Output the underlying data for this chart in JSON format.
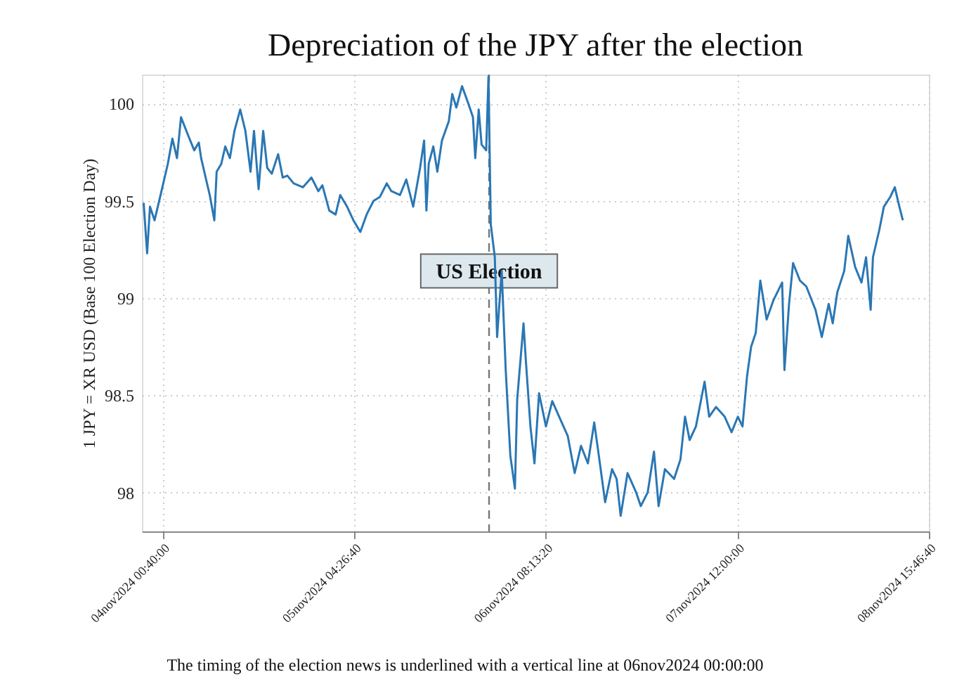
{
  "chart_data": {
    "type": "line",
    "title": "Depreciation of the JPY after the election",
    "ylabel": "1 JPY = XR USD (Base 100 Election Day)",
    "annotations": [
      "The timing of the election news is underlined with a vertical line at 06nov2024 00:00:00"
    ],
    "x": [
      "2024-11-03T21:55",
      "2024-11-03T22:25",
      "2024-11-03T22:50",
      "2024-11-03T23:30",
      "2024-11-04T00:30",
      "2024-11-04T01:25",
      "2024-11-04T02:05",
      "2024-11-04T02:45",
      "2024-11-04T03:20",
      "2024-11-04T04:20",
      "2024-11-04T05:15",
      "2024-11-04T05:55",
      "2024-11-04T06:15",
      "2024-11-04T07:10",
      "2024-11-04T07:30",
      "2024-11-04T08:10",
      "2024-11-04T08:30",
      "2024-11-04T09:10",
      "2024-11-04T09:45",
      "2024-11-04T10:25",
      "2024-11-04T11:05",
      "2024-11-04T11:55",
      "2024-11-04T12:40",
      "2024-11-04T13:25",
      "2024-11-04T13:55",
      "2024-11-04T14:35",
      "2024-11-04T15:15",
      "2024-11-04T15:50",
      "2024-11-04T16:30",
      "2024-11-04T17:25",
      "2024-11-04T18:05",
      "2024-11-04T18:45",
      "2024-11-04T19:40",
      "2024-11-04T21:00",
      "2024-11-04T22:15",
      "2024-11-04T23:15",
      "2024-11-04T23:50",
      "2024-11-05T00:50",
      "2024-11-05T01:45",
      "2024-11-05T02:25",
      "2024-11-05T03:25",
      "2024-11-05T04:20",
      "2024-11-05T05:20",
      "2024-11-05T06:15",
      "2024-11-05T07:15",
      "2024-11-05T08:10",
      "2024-11-05T09:10",
      "2024-11-05T09:50",
      "2024-11-05T11:05",
      "2024-11-05T12:00",
      "2024-11-05T13:00",
      "2024-11-05T14:00",
      "2024-11-05T14:35",
      "2024-11-05T14:55",
      "2024-11-05T15:15",
      "2024-11-05T15:55",
      "2024-11-05T16:30",
      "2024-11-05T17:10",
      "2024-11-05T18:10",
      "2024-11-05T18:40",
      "2024-11-05T19:15",
      "2024-11-05T20:05",
      "2024-11-05T21:00",
      "2024-11-05T21:40",
      "2024-11-05T22:00",
      "2024-11-05T22:30",
      "2024-11-05T22:55",
      "2024-11-05T23:35",
      "2024-11-05T23:55",
      "2024-11-06T00:05",
      "2024-11-06T00:15",
      "2024-11-06T00:50",
      "2024-11-06T01:10",
      "2024-11-06T01:50",
      "2024-11-06T02:25",
      "2024-11-06T03:05",
      "2024-11-06T03:45",
      "2024-11-06T04:05",
      "2024-11-06T05:00",
      "2024-11-06T05:20",
      "2024-11-06T06:00",
      "2024-11-06T06:35",
      "2024-11-06T07:15",
      "2024-11-06T08:15",
      "2024-11-06T09:10",
      "2024-11-06T10:10",
      "2024-11-06T11:25",
      "2024-11-06T12:25",
      "2024-11-06T13:20",
      "2024-11-06T14:20",
      "2024-11-06T15:15",
      "2024-11-06T15:55",
      "2024-11-06T16:50",
      "2024-11-06T17:50",
      "2024-11-06T18:30",
      "2024-11-06T19:05",
      "2024-11-06T20:05",
      "2024-11-06T21:20",
      "2024-11-06T22:00",
      "2024-11-06T23:00",
      "2024-11-06T23:55",
      "2024-11-07T00:35",
      "2024-11-07T01:30",
      "2024-11-07T02:50",
      "2024-11-07T03:45",
      "2024-11-07T04:25",
      "2024-11-07T05:05",
      "2024-11-07T06:00",
      "2024-11-07T07:15",
      "2024-11-07T07:55",
      "2024-11-07T08:55",
      "2024-11-07T10:10",
      "2024-11-07T11:10",
      "2024-11-07T12:05",
      "2024-11-07T12:45",
      "2024-11-07T13:25",
      "2024-11-07T14:00",
      "2024-11-07T14:40",
      "2024-11-07T15:20",
      "2024-11-07T16:15",
      "2024-11-07T17:15",
      "2024-11-07T18:30",
      "2024-11-07T18:50",
      "2024-11-07T19:30",
      "2024-11-07T20:05",
      "2024-11-07T21:05",
      "2024-11-07T22:00",
      "2024-11-07T23:20",
      "2024-11-08T00:15",
      "2024-11-08T01:15",
      "2024-11-08T01:50",
      "2024-11-08T02:30",
      "2024-11-08T03:30",
      "2024-11-08T04:05",
      "2024-11-08T05:05",
      "2024-11-08T06:00",
      "2024-11-08T06:40",
      "2024-11-08T07:20",
      "2024-11-08T07:40",
      "2024-11-08T08:35",
      "2024-11-08T09:15",
      "2024-11-08T10:10",
      "2024-11-08T10:50",
      "2024-11-08T11:30",
      "2024-11-08T12:00"
    ],
    "series": [
      {
        "color": "#2a77b4",
        "values": [
          99.49,
          99.23,
          99.47,
          99.4,
          99.55,
          99.69,
          99.82,
          99.72,
          99.93,
          99.84,
          99.76,
          99.8,
          99.72,
          99.58,
          99.53,
          99.4,
          99.65,
          99.69,
          99.78,
          99.72,
          99.86,
          99.97,
          99.86,
          99.65,
          99.86,
          99.56,
          99.86,
          99.67,
          99.64,
          99.74,
          99.62,
          99.63,
          99.59,
          99.57,
          99.62,
          99.55,
          99.58,
          99.45,
          99.43,
          99.53,
          99.47,
          99.4,
          99.34,
          99.43,
          99.5,
          99.52,
          99.59,
          99.55,
          99.53,
          99.61,
          99.47,
          99.67,
          99.81,
          99.45,
          99.69,
          99.78,
          99.65,
          99.81,
          99.91,
          100.05,
          99.98,
          100.09,
          100.0,
          99.93,
          99.72,
          99.97,
          99.79,
          99.76,
          100.14,
          99.76,
          99.38,
          99.21,
          98.8,
          99.14,
          98.63,
          98.19,
          98.02,
          98.48,
          98.87,
          98.68,
          98.34,
          98.15,
          98.51,
          98.34,
          98.47,
          98.39,
          98.29,
          98.1,
          98.24,
          98.15,
          98.36,
          98.19,
          97.95,
          98.12,
          98.07,
          97.88,
          98.1,
          98.0,
          97.93,
          98.0,
          98.21,
          97.93,
          98.12,
          98.07,
          98.17,
          98.39,
          98.27,
          98.34,
          98.57,
          98.39,
          98.44,
          98.39,
          98.31,
          98.39,
          98.34,
          98.6,
          98.75,
          98.82,
          99.09,
          98.89,
          98.99,
          99.08,
          98.63,
          98.97,
          99.18,
          99.09,
          99.06,
          98.94,
          98.8,
          98.97,
          98.87,
          99.03,
          99.14,
          99.32,
          99.16,
          99.08,
          99.21,
          98.94,
          99.21,
          99.35,
          99.47,
          99.52,
          99.57,
          99.47,
          99.4
        ]
      }
    ],
    "xlim": [
      "2024-11-03T21:40",
      "2024-11-08T15:46:40"
    ],
    "xticks": [
      {
        "value": "2024-11-04T00:40:00",
        "label": "04nov2024 00:40:00"
      },
      {
        "value": "2024-11-05T04:26:40",
        "label": "05nov2024 04:26:40"
      },
      {
        "value": "2024-11-06T08:13:20",
        "label": "06nov2024 08:13:20"
      },
      {
        "value": "2024-11-07T12:00:00",
        "label": "07nov2024 12:00:00"
      },
      {
        "value": "2024-11-08T15:46:40",
        "label": "08nov2024 15:46:40"
      }
    ],
    "ylim": [
      97.8,
      100.15
    ],
    "yticks": [
      98,
      98.5,
      99,
      99.5,
      100
    ],
    "ref_lines": [
      {
        "axis": "x",
        "value": "2024-11-06T00:00",
        "label": "US Election",
        "color": "#777777",
        "line_style": "dashed"
      }
    ],
    "grid": true,
    "line_style": "solid",
    "marker": "none"
  }
}
